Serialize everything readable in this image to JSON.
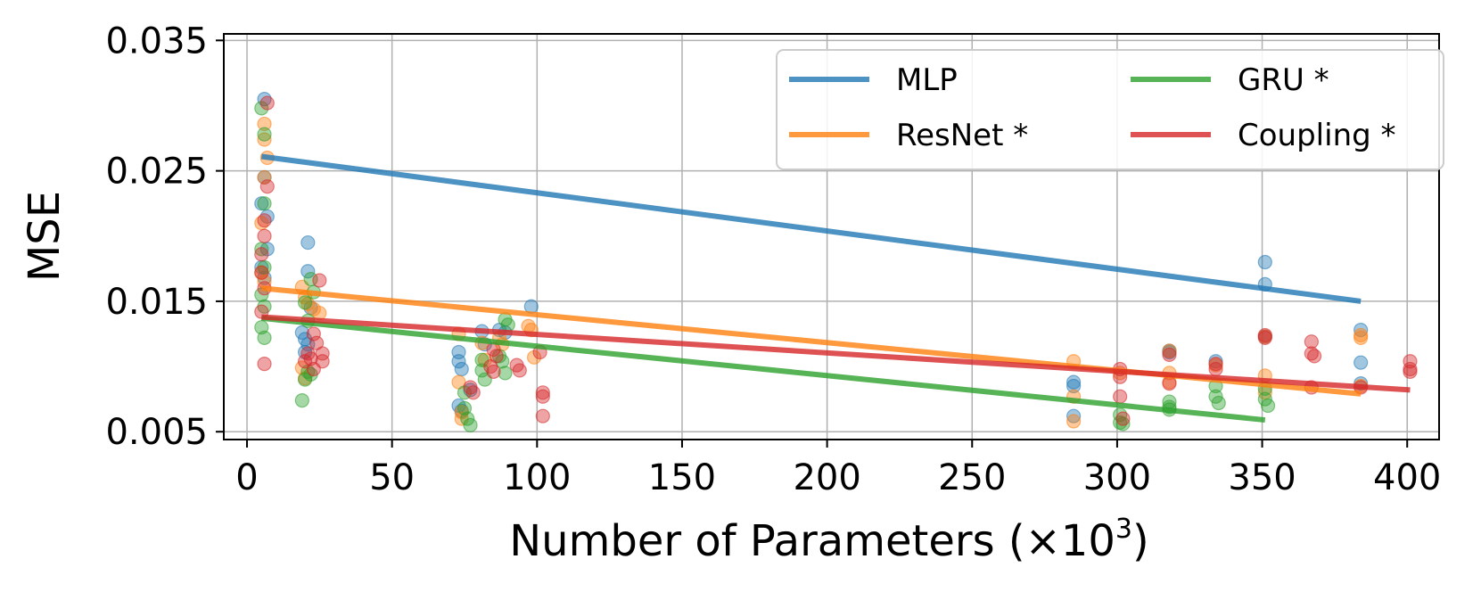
{
  "chart_data": {
    "type": "scatter",
    "title": "",
    "xlabel": "Number of Parameters (×10",
    "xlabel_exponent": "3",
    "xlabel_close": ")",
    "ylabel": "MSE",
    "xlim": [
      -8,
      411
    ],
    "ylim": [
      0.0044,
      0.0355
    ],
    "xticks": [
      0,
      50,
      100,
      150,
      200,
      250,
      300,
      350,
      400
    ],
    "xtick_labels": [
      "0",
      "50",
      "100",
      "150",
      "200",
      "250",
      "300",
      "350",
      "400"
    ],
    "yticks": [
      0.005,
      0.015,
      0.025,
      0.035
    ],
    "ytick_labels": [
      "0.005",
      "0.015",
      "0.025",
      "0.035"
    ],
    "grid": true,
    "legend_position": "top-right",
    "legend_columns": 2,
    "series": [
      {
        "name": "MLP",
        "color": "#1f77b4",
        "trend": [
          [
            5,
            0.0261
          ],
          [
            384,
            0.015
          ]
        ],
        "points": [
          [
            5,
            0.0225
          ],
          [
            6,
            0.0305
          ],
          [
            6,
            0.0245
          ],
          [
            7,
            0.0215
          ],
          [
            7,
            0.019
          ],
          [
            5,
            0.0176
          ],
          [
            6,
            0.0168
          ],
          [
            19,
            0.0126
          ],
          [
            20,
            0.0121
          ],
          [
            21,
            0.0117
          ],
          [
            20,
            0.0111
          ],
          [
            21,
            0.0195
          ],
          [
            21,
            0.0173
          ],
          [
            22,
            0.0145
          ],
          [
            73,
            0.0111
          ],
          [
            73,
            0.0104
          ],
          [
            74,
            0.0098
          ],
          [
            73,
            0.007
          ],
          [
            74,
            0.0066
          ],
          [
            77,
            0.0082
          ],
          [
            81,
            0.0127
          ],
          [
            82,
            0.0117
          ],
          [
            87,
            0.0128
          ],
          [
            89,
            0.0126
          ],
          [
            98,
            0.0146
          ],
          [
            285,
            0.0088
          ],
          [
            285,
            0.0085
          ],
          [
            285,
            0.0062
          ],
          [
            318,
            0.0112
          ],
          [
            318,
            0.0111
          ],
          [
            334,
            0.0104
          ],
          [
            351,
            0.018
          ],
          [
            351,
            0.0163
          ],
          [
            351,
            0.0123
          ],
          [
            384,
            0.0128
          ],
          [
            384,
            0.0103
          ],
          [
            384,
            0.0087
          ]
        ]
      },
      {
        "name": "ResNet *",
        "color": "#ff7f0e",
        "trend": [
          [
            5,
            0.016
          ],
          [
            384,
            0.0079
          ]
        ],
        "points": [
          [
            6,
            0.0286
          ],
          [
            6,
            0.0274
          ],
          [
            7,
            0.026
          ],
          [
            6,
            0.0245
          ],
          [
            5,
            0.021
          ],
          [
            5,
            0.0172
          ],
          [
            6,
            0.0165
          ],
          [
            19,
            0.0161
          ],
          [
            20,
            0.0153
          ],
          [
            21,
            0.0148
          ],
          [
            23,
            0.0144
          ],
          [
            25,
            0.0141
          ],
          [
            19,
            0.0099
          ],
          [
            20,
            0.0091
          ],
          [
            73,
            0.0125
          ],
          [
            73,
            0.0088
          ],
          [
            74,
            0.0065
          ],
          [
            74,
            0.006
          ],
          [
            81,
            0.0118
          ],
          [
            82,
            0.0105
          ],
          [
            87,
            0.0122
          ],
          [
            88,
            0.0117
          ],
          [
            97,
            0.0131
          ],
          [
            98,
            0.0128
          ],
          [
            99,
            0.0107
          ],
          [
            285,
            0.0104
          ],
          [
            285,
            0.0077
          ],
          [
            285,
            0.0058
          ],
          [
            301,
            0.0095
          ],
          [
            318,
            0.0112
          ],
          [
            318,
            0.0095
          ],
          [
            318,
            0.0088
          ],
          [
            334,
            0.0101
          ],
          [
            351,
            0.0123
          ],
          [
            351,
            0.0093
          ],
          [
            351,
            0.008
          ],
          [
            384,
            0.0124
          ],
          [
            384,
            0.0122
          ],
          [
            384,
            0.0085
          ]
        ]
      },
      {
        "name": "GRU *",
        "color": "#2ca02c",
        "trend": [
          [
            5,
            0.0137
          ],
          [
            351,
            0.0059
          ]
        ],
        "points": [
          [
            5,
            0.0298
          ],
          [
            6,
            0.0278
          ],
          [
            6,
            0.0225
          ],
          [
            5,
            0.019
          ],
          [
            6,
            0.0176
          ],
          [
            5,
            0.0155
          ],
          [
            6,
            0.0146
          ],
          [
            5,
            0.013
          ],
          [
            6,
            0.0122
          ],
          [
            20,
            0.0149
          ],
          [
            21,
            0.0135
          ],
          [
            22,
            0.0167
          ],
          [
            23,
            0.0157
          ],
          [
            21,
            0.0096
          ],
          [
            20,
            0.009
          ],
          [
            22,
            0.0094
          ],
          [
            19,
            0.0074
          ],
          [
            75,
            0.0068
          ],
          [
            76,
            0.006
          ],
          [
            77,
            0.0055
          ],
          [
            75,
            0.008
          ],
          [
            81,
            0.0105
          ],
          [
            81,
            0.0097
          ],
          [
            82,
            0.009
          ],
          [
            87,
            0.0108
          ],
          [
            88,
            0.0104
          ],
          [
            89,
            0.0095
          ],
          [
            89,
            0.0136
          ],
          [
            90,
            0.0132
          ],
          [
            301,
            0.0063
          ],
          [
            301,
            0.0057
          ],
          [
            302,
            0.0056
          ],
          [
            318,
            0.0073
          ],
          [
            318,
            0.0069
          ],
          [
            318,
            0.0067
          ],
          [
            334,
            0.0085
          ],
          [
            334,
            0.0077
          ],
          [
            335,
            0.0072
          ],
          [
            351,
            0.0083
          ],
          [
            351,
            0.0075
          ],
          [
            352,
            0.007
          ]
        ]
      },
      {
        "name": "Coupling *",
        "color": "#d62728",
        "trend": [
          [
            5,
            0.0138
          ],
          [
            401,
            0.0082
          ]
        ],
        "points": [
          [
            7,
            0.0302
          ],
          [
            7,
            0.0238
          ],
          [
            6,
            0.0212
          ],
          [
            6,
            0.02
          ],
          [
            5,
            0.0186
          ],
          [
            5,
            0.0172
          ],
          [
            6,
            0.016
          ],
          [
            5,
            0.0142
          ],
          [
            6,
            0.0102
          ],
          [
            21,
            0.011
          ],
          [
            22,
            0.0106
          ],
          [
            20,
            0.0104
          ],
          [
            23,
            0.0125
          ],
          [
            24,
            0.0118
          ],
          [
            25,
            0.0166
          ],
          [
            26,
            0.011
          ],
          [
            26,
            0.0104
          ],
          [
            23,
            0.0098
          ],
          [
            77,
            0.0084
          ],
          [
            78,
            0.008
          ],
          [
            85,
            0.0113
          ],
          [
            86,
            0.0108
          ],
          [
            84,
            0.01
          ],
          [
            85,
            0.0096
          ],
          [
            93,
            0.0101
          ],
          [
            94,
            0.0097
          ],
          [
            101,
            0.0111
          ],
          [
            102,
            0.008
          ],
          [
            102,
            0.0077
          ],
          [
            102,
            0.0062
          ],
          [
            301,
            0.0098
          ],
          [
            301,
            0.0092
          ],
          [
            301,
            0.0077
          ],
          [
            302,
            0.006
          ],
          [
            318,
            0.0109
          ],
          [
            318,
            0.0087
          ],
          [
            334,
            0.0102
          ],
          [
            334,
            0.0098
          ],
          [
            351,
            0.0124
          ],
          [
            351,
            0.0122
          ],
          [
            367,
            0.0119
          ],
          [
            367,
            0.011
          ],
          [
            368,
            0.0108
          ],
          [
            367,
            0.0084
          ],
          [
            384,
            0.0084
          ],
          [
            401,
            0.0104
          ],
          [
            401,
            0.0098
          ],
          [
            401,
            0.0096
          ]
        ]
      }
    ]
  }
}
